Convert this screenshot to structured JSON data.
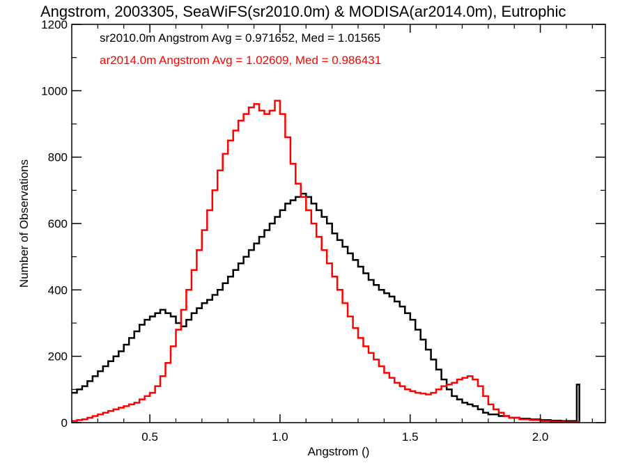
{
  "chart_data": {
    "type": "line",
    "title": "Angstrom, 2003305, SeaWiFS(sr2010.0m) & MODISA(ar2014.0m), Eutrophic",
    "xlabel": "Angstrom ()",
    "ylabel": "Number of Observations",
    "xlim": [
      0.2,
      2.25
    ],
    "ylim": [
      0,
      1200
    ],
    "x_ticks": [
      0.5,
      1.0,
      1.5,
      2.0
    ],
    "x_tick_labels": [
      "0.5",
      "1.0",
      "1.5",
      "2.0"
    ],
    "y_ticks": [
      0,
      200,
      400,
      600,
      800,
      1000,
      1200
    ],
    "y_tick_labels": [
      "0",
      "200",
      "400",
      "600",
      "800",
      "1000",
      "1200"
    ],
    "grid": false,
    "legend_position": "top-left",
    "annotations": [
      {
        "text": "sr2010.0m Angstrom Avg = 0.971652, Med = 1.01565",
        "color": "#000000"
      },
      {
        "text": "ar2014.0m Angstrom Avg = 1.02609, Med = 0.986431",
        "color": "#ff0000"
      }
    ],
    "series": [
      {
        "color": "#000000",
        "step": true,
        "points": [
          [
            0.2,
            90
          ],
          [
            0.22,
            100
          ],
          [
            0.24,
            110
          ],
          [
            0.26,
            125
          ],
          [
            0.28,
            140
          ],
          [
            0.3,
            155
          ],
          [
            0.32,
            170
          ],
          [
            0.34,
            185
          ],
          [
            0.36,
            200
          ],
          [
            0.38,
            215
          ],
          [
            0.4,
            235
          ],
          [
            0.42,
            255
          ],
          [
            0.44,
            275
          ],
          [
            0.46,
            295
          ],
          [
            0.48,
            310
          ],
          [
            0.5,
            320
          ],
          [
            0.52,
            330
          ],
          [
            0.54,
            340
          ],
          [
            0.56,
            330
          ],
          [
            0.58,
            320
          ],
          [
            0.6,
            300
          ],
          [
            0.62,
            290
          ],
          [
            0.64,
            310
          ],
          [
            0.66,
            330
          ],
          [
            0.68,
            345
          ],
          [
            0.7,
            360
          ],
          [
            0.72,
            370
          ],
          [
            0.74,
            385
          ],
          [
            0.76,
            400
          ],
          [
            0.78,
            420
          ],
          [
            0.8,
            440
          ],
          [
            0.82,
            460
          ],
          [
            0.84,
            480
          ],
          [
            0.86,
            500
          ],
          [
            0.88,
            520
          ],
          [
            0.9,
            540
          ],
          [
            0.92,
            560
          ],
          [
            0.94,
            580
          ],
          [
            0.96,
            600
          ],
          [
            0.98,
            620
          ],
          [
            1.0,
            640
          ],
          [
            1.02,
            660
          ],
          [
            1.04,
            670
          ],
          [
            1.06,
            680
          ],
          [
            1.08,
            690
          ],
          [
            1.1,
            680
          ],
          [
            1.12,
            660
          ],
          [
            1.14,
            640
          ],
          [
            1.16,
            620
          ],
          [
            1.18,
            600
          ],
          [
            1.2,
            570
          ],
          [
            1.22,
            550
          ],
          [
            1.24,
            530
          ],
          [
            1.26,
            510
          ],
          [
            1.28,
            490
          ],
          [
            1.3,
            470
          ],
          [
            1.32,
            450
          ],
          [
            1.34,
            430
          ],
          [
            1.36,
            415
          ],
          [
            1.38,
            400
          ],
          [
            1.4,
            390
          ],
          [
            1.42,
            380
          ],
          [
            1.44,
            365
          ],
          [
            1.46,
            350
          ],
          [
            1.48,
            330
          ],
          [
            1.5,
            310
          ],
          [
            1.52,
            280
          ],
          [
            1.54,
            250
          ],
          [
            1.56,
            220
          ],
          [
            1.58,
            190
          ],
          [
            1.6,
            160
          ],
          [
            1.62,
            130
          ],
          [
            1.64,
            100
          ],
          [
            1.66,
            80
          ],
          [
            1.68,
            70
          ],
          [
            1.7,
            60
          ],
          [
            1.72,
            55
          ],
          [
            1.74,
            50
          ],
          [
            1.76,
            40
          ],
          [
            1.78,
            30
          ],
          [
            1.8,
            25
          ],
          [
            1.84,
            20
          ],
          [
            1.88,
            15
          ],
          [
            1.92,
            12
          ],
          [
            1.96,
            10
          ],
          [
            2.0,
            8
          ],
          [
            2.04,
            6
          ],
          [
            2.08,
            5
          ],
          [
            2.12,
            5
          ],
          [
            2.14,
            115
          ],
          [
            2.15,
            0
          ]
        ]
      },
      {
        "color": "#ff0000",
        "step": true,
        "points": [
          [
            0.2,
            5
          ],
          [
            0.22,
            8
          ],
          [
            0.24,
            10
          ],
          [
            0.26,
            15
          ],
          [
            0.28,
            20
          ],
          [
            0.3,
            25
          ],
          [
            0.32,
            30
          ],
          [
            0.34,
            35
          ],
          [
            0.36,
            40
          ],
          [
            0.38,
            45
          ],
          [
            0.4,
            50
          ],
          [
            0.42,
            55
          ],
          [
            0.44,
            60
          ],
          [
            0.46,
            70
          ],
          [
            0.48,
            80
          ],
          [
            0.5,
            90
          ],
          [
            0.52,
            110
          ],
          [
            0.54,
            140
          ],
          [
            0.56,
            180
          ],
          [
            0.58,
            230
          ],
          [
            0.6,
            280
          ],
          [
            0.62,
            340
          ],
          [
            0.64,
            400
          ],
          [
            0.66,
            460
          ],
          [
            0.68,
            520
          ],
          [
            0.7,
            580
          ],
          [
            0.72,
            640
          ],
          [
            0.74,
            700
          ],
          [
            0.76,
            760
          ],
          [
            0.78,
            810
          ],
          [
            0.8,
            850
          ],
          [
            0.82,
            880
          ],
          [
            0.84,
            910
          ],
          [
            0.86,
            930
          ],
          [
            0.88,
            950
          ],
          [
            0.9,
            960
          ],
          [
            0.92,
            940
          ],
          [
            0.94,
            930
          ],
          [
            0.96,
            940
          ],
          [
            0.98,
            970
          ],
          [
            1.0,
            930
          ],
          [
            1.02,
            860
          ],
          [
            1.04,
            780
          ],
          [
            1.06,
            720
          ],
          [
            1.08,
            680
          ],
          [
            1.1,
            640
          ],
          [
            1.12,
            600
          ],
          [
            1.14,
            560
          ],
          [
            1.16,
            520
          ],
          [
            1.18,
            480
          ],
          [
            1.2,
            440
          ],
          [
            1.22,
            400
          ],
          [
            1.24,
            360
          ],
          [
            1.26,
            320
          ],
          [
            1.28,
            285
          ],
          [
            1.3,
            255
          ],
          [
            1.32,
            230
          ],
          [
            1.34,
            210
          ],
          [
            1.36,
            190
          ],
          [
            1.38,
            170
          ],
          [
            1.4,
            150
          ],
          [
            1.42,
            135
          ],
          [
            1.44,
            120
          ],
          [
            1.46,
            110
          ],
          [
            1.48,
            100
          ],
          [
            1.5,
            95
          ],
          [
            1.52,
            90
          ],
          [
            1.54,
            88
          ],
          [
            1.56,
            85
          ],
          [
            1.58,
            90
          ],
          [
            1.6,
            100
          ],
          [
            1.62,
            110
          ],
          [
            1.64,
            115
          ],
          [
            1.66,
            120
          ],
          [
            1.68,
            130
          ],
          [
            1.7,
            135
          ],
          [
            1.72,
            140
          ],
          [
            1.74,
            130
          ],
          [
            1.76,
            110
          ],
          [
            1.78,
            80
          ],
          [
            1.8,
            55
          ],
          [
            1.82,
            40
          ],
          [
            1.84,
            30
          ],
          [
            1.86,
            20
          ],
          [
            1.88,
            15
          ],
          [
            1.92,
            10
          ],
          [
            1.96,
            8
          ],
          [
            2.0,
            5
          ],
          [
            2.04,
            3
          ],
          [
            2.1,
            2
          ],
          [
            2.15,
            0
          ]
        ]
      }
    ]
  }
}
